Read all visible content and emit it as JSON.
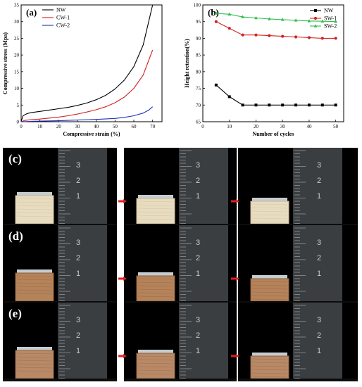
{
  "charts": [
    {
      "panel_label": "(a)",
      "chart_data": {
        "type": "line",
        "title": "",
        "xlabel": "Compressive strain (%)",
        "ylabel": "Compressive stress (Mpa)",
        "xlim": [
          0,
          75
        ],
        "ylim": [
          0,
          35
        ],
        "xticks": [
          0,
          10,
          20,
          30,
          40,
          50,
          60,
          70
        ],
        "yticks": [
          0,
          5,
          10,
          15,
          20,
          25,
          30,
          35
        ],
        "grid": false,
        "legend_position": "top-left",
        "series": [
          {
            "name": "NW",
            "color": "#000000",
            "x": [
              0,
              1,
              3,
              5,
              10,
              15,
              20,
              25,
              30,
              35,
              40,
              45,
              50,
              55,
              60,
              65,
              70
            ],
            "y": [
              0,
              1.8,
              2.4,
              2.7,
              3.1,
              3.5,
              3.9,
              4.3,
              4.9,
              5.6,
              6.6,
              7.9,
              9.8,
              12.5,
              16.5,
              23,
              35
            ]
          },
          {
            "name": "CW-1",
            "color": "#d42020",
            "x": [
              0,
              2,
              5,
              10,
              15,
              20,
              25,
              30,
              35,
              40,
              45,
              50,
              55,
              60,
              65,
              70
            ],
            "y": [
              0,
              0.4,
              0.6,
              0.8,
              1.1,
              1.4,
              1.8,
              2.3,
              2.9,
              3.6,
              4.5,
              5.7,
              7.4,
              10,
              14,
              21.5
            ]
          },
          {
            "name": "CW-2",
            "color": "#2030c0",
            "x": [
              0,
              5,
              10,
              20,
              30,
              40,
              50,
              55,
              60,
              65,
              68,
              70
            ],
            "y": [
              0,
              0.1,
              0.2,
              0.3,
              0.5,
              0.7,
              1.0,
              1.3,
              1.8,
              2.6,
              3.5,
              4.5
            ]
          }
        ]
      }
    },
    {
      "panel_label": "(b)",
      "chart_data": {
        "type": "line",
        "title": "",
        "xlabel": "Number of cycles",
        "ylabel": "Height retention(%)",
        "xlim": [
          0,
          53
        ],
        "ylim": [
          65,
          100
        ],
        "xticks": [
          0,
          10,
          20,
          30,
          40,
          50
        ],
        "yticks": [
          65,
          70,
          75,
          80,
          85,
          90,
          95,
          100
        ],
        "grid": false,
        "legend_position": "top-right",
        "series": [
          {
            "name": "NW",
            "color": "#000000",
            "marker": "square",
            "x": [
              5,
              10,
              15,
              20,
              25,
              30,
              35,
              40,
              45,
              50
            ],
            "y": [
              76,
              72.5,
              70,
              70,
              70,
              70,
              70,
              70,
              70,
              70
            ]
          },
          {
            "name": "SW-1",
            "color": "#d42020",
            "marker": "circle",
            "x": [
              5,
              10,
              15,
              20,
              25,
              30,
              35,
              40,
              45,
              50
            ],
            "y": [
              95,
              93,
              91,
              91,
              90.8,
              90.6,
              90.4,
              90.2,
              90,
              90
            ]
          },
          {
            "name": "SW-2",
            "color": "#2fc050",
            "marker": "triangle",
            "x": [
              5,
              10,
              15,
              20,
              25,
              30,
              35,
              40,
              45,
              50
            ],
            "y": [
              97.5,
              97.2,
              96.4,
              96.1,
              95.8,
              95.6,
              95.4,
              95.2,
              95.1,
              95
            ]
          }
        ]
      }
    }
  ],
  "photos": [
    {
      "label": "(c)",
      "sample": "#e8dcc0",
      "sample_edge": "#c9b48e",
      "frames": 3
    },
    {
      "label": "(d)",
      "sample": "#b5835a",
      "sample_edge": "#8c5c38",
      "frames": 3
    },
    {
      "label": "(e)",
      "sample": "#b88966",
      "sample_edge": "#8e603e",
      "frames": 3
    }
  ],
  "ruler_digits": [
    "1",
    "2",
    "3"
  ],
  "colors": {
    "arrow": "#e02020",
    "background": "#1c1c1c",
    "piston": "#9aa3a8"
  }
}
